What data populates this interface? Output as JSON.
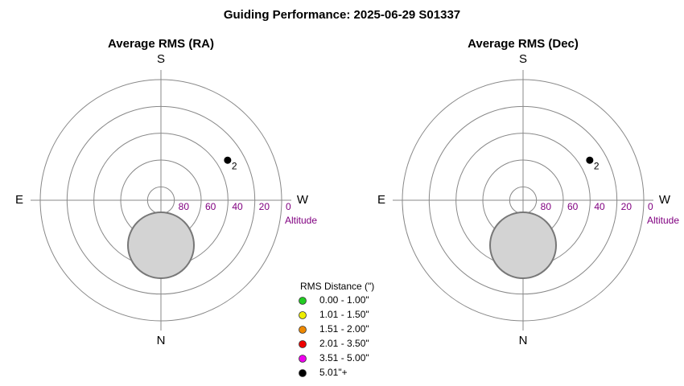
{
  "title": "Guiding Performance: 2025-06-29 S01337",
  "chart_data": [
    {
      "type": "polar",
      "title": "Average RMS (RA)",
      "compass": {
        "top": "S",
        "right": "W",
        "bottom": "N",
        "left": "E"
      },
      "r_label": "Altitude",
      "rlim": [
        90,
        0
      ],
      "rticks": [
        80,
        60,
        40,
        20,
        0
      ],
      "points": [
        {
          "azimuth": 239,
          "altitude": 32,
          "label": "2",
          "color": "#000000"
        }
      ]
    },
    {
      "type": "polar",
      "title": "Average RMS (Dec)",
      "compass": {
        "top": "S",
        "right": "W",
        "bottom": "N",
        "left": "E"
      },
      "r_label": "Altitude",
      "rlim": [
        90,
        0
      ],
      "rticks": [
        80,
        60,
        40,
        20,
        0
      ],
      "points": [
        {
          "azimuth": 239,
          "altitude": 32,
          "label": "2",
          "color": "#000000"
        }
      ]
    }
  ],
  "legend": {
    "title": "RMS Distance (\")",
    "items": [
      {
        "label": "0.00 - 1.00\"",
        "color": "#22cc22"
      },
      {
        "label": "1.01 - 1.50\"",
        "color": "#eeee00"
      },
      {
        "label": "1.51 - 2.00\"",
        "color": "#ee8800"
      },
      {
        "label": "2.01 - 3.50\"",
        "color": "#ee0000"
      },
      {
        "label": "3.51 - 5.00\"",
        "color": "#ee00ee"
      },
      {
        "label": "5.01\"+",
        "color": "#000000"
      }
    ]
  }
}
